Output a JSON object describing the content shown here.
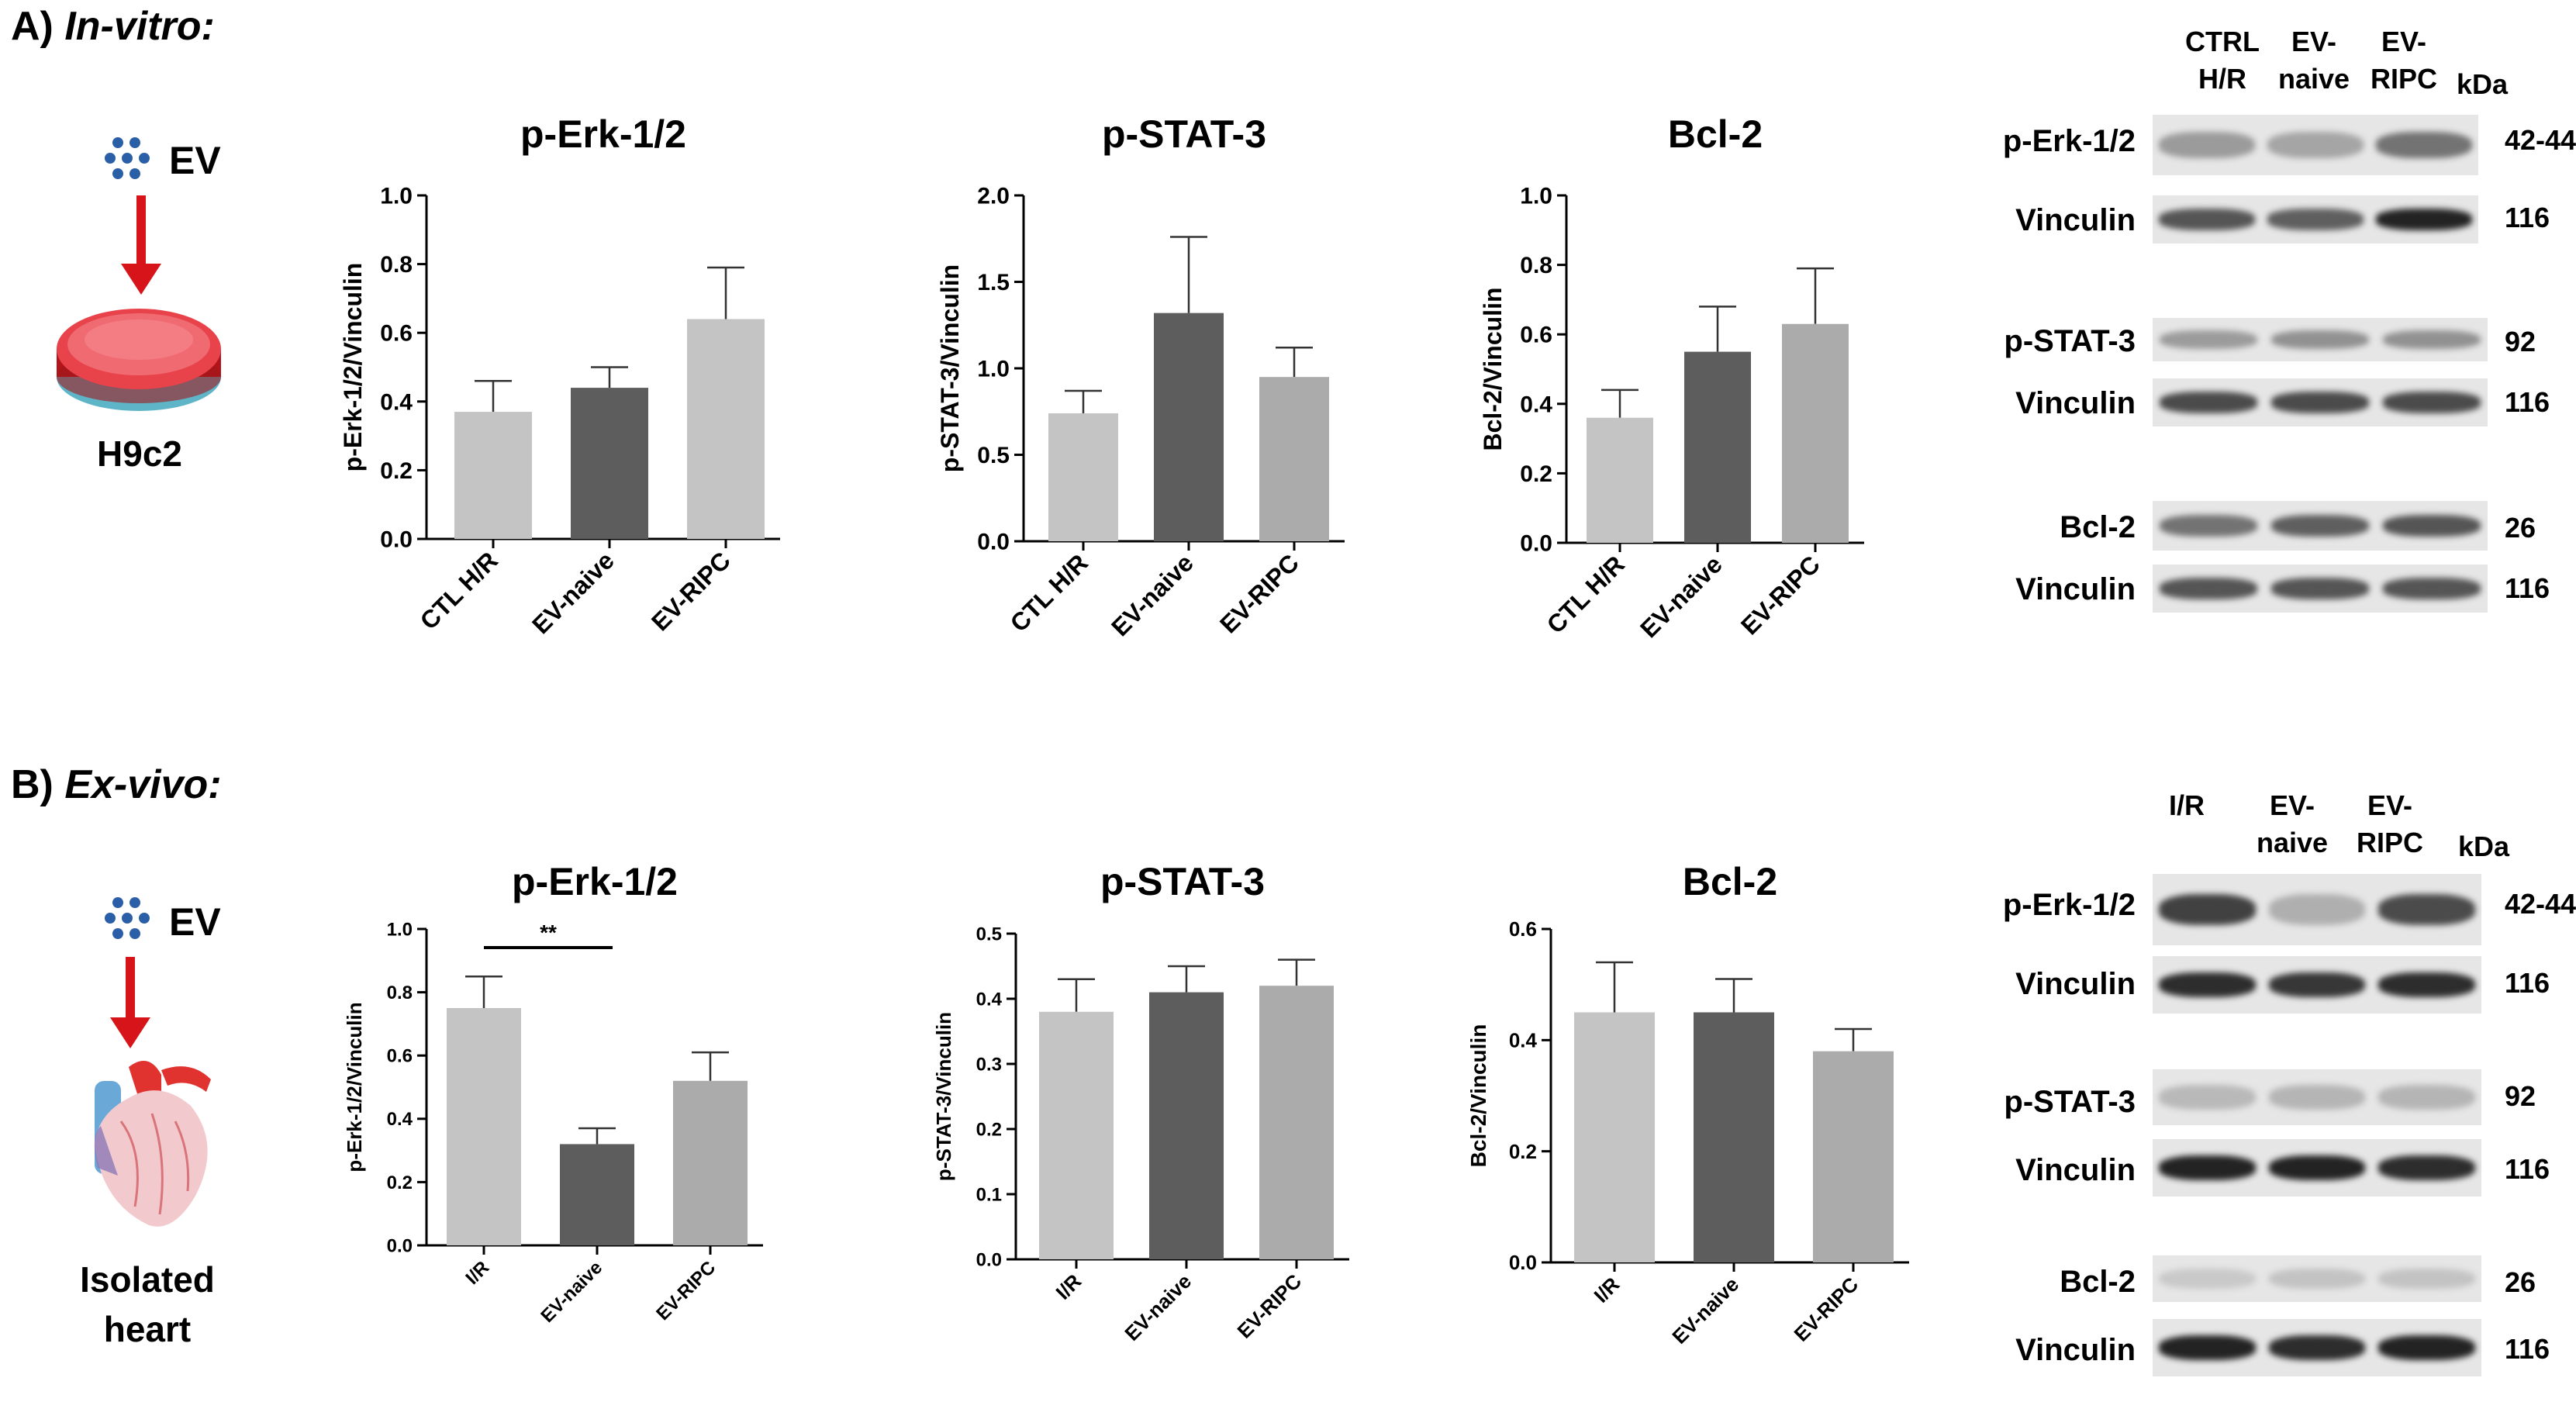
{
  "sections": {
    "a": {
      "prefix": "A)",
      "title": "In-vitro:",
      "treatment": "EV",
      "model": "H9c2"
    },
    "b": {
      "prefix": "B)",
      "title": "Ex-vivo:",
      "treatment": "EV",
      "model_line1": "Isolated",
      "model_line2": "heart"
    }
  },
  "chart_data": [
    {
      "id": "a1",
      "type": "bar",
      "title": "p-Erk-1/2",
      "ylabel": "p-Erk-1/2/Vinculin",
      "categories": [
        "CTL H/R",
        "EV-naive",
        "EV-RIPC"
      ],
      "values": [
        0.37,
        0.44,
        0.64
      ],
      "errors": [
        0.09,
        0.06,
        0.15
      ],
      "ylim": [
        0,
        1.0
      ],
      "ticks": [
        "0.0",
        "0.2",
        "0.4",
        "0.6",
        "0.8",
        "1.0"
      ],
      "colors": [
        "#c4c4c4",
        "#5d5d5d",
        "#c4c4c4"
      ],
      "significance": []
    },
    {
      "id": "a2",
      "type": "bar",
      "title": "p-STAT-3",
      "ylabel": "p-STAT-3/Vinculin",
      "categories": [
        "CTL H/R",
        "EV-naive",
        "EV-RIPC"
      ],
      "values": [
        0.74,
        1.32,
        0.95
      ],
      "errors": [
        0.13,
        0.44,
        0.17
      ],
      "ylim": [
        0,
        2.0
      ],
      "ticks": [
        "0.0",
        "0.5",
        "1.0",
        "1.5",
        "2.0"
      ],
      "colors": [
        "#c4c4c4",
        "#5d5d5d",
        "#ababab"
      ],
      "significance": []
    },
    {
      "id": "a3",
      "type": "bar",
      "title": "Bcl-2",
      "ylabel": "Bcl-2/Vinculin",
      "categories": [
        "CTL H/R",
        "EV-naive",
        "EV-RIPC"
      ],
      "values": [
        0.36,
        0.55,
        0.63
      ],
      "errors": [
        0.08,
        0.13,
        0.16
      ],
      "ylim": [
        0,
        1.0
      ],
      "ticks": [
        "0.0",
        "0.2",
        "0.4",
        "0.6",
        "0.8",
        "1.0"
      ],
      "colors": [
        "#c4c4c4",
        "#5d5d5d",
        "#ababab"
      ],
      "significance": []
    },
    {
      "id": "b1",
      "type": "bar",
      "title": "p-Erk-1/2",
      "ylabel": "p-Erk-1/2/Vinculin",
      "categories": [
        "I/R",
        "EV-naive",
        "EV-RIPC"
      ],
      "values": [
        0.75,
        0.32,
        0.52
      ],
      "errors": [
        0.1,
        0.05,
        0.09
      ],
      "ylim": [
        0,
        1.0
      ],
      "ticks": [
        "0.0",
        "0.2",
        "0.4",
        "0.6",
        "0.8",
        "1.0"
      ],
      "colors": [
        "#c4c4c4",
        "#5d5d5d",
        "#ababab"
      ],
      "significance": [
        {
          "from": 0,
          "to": 1,
          "label": "**"
        }
      ]
    },
    {
      "id": "b2",
      "type": "bar",
      "title": "p-STAT-3",
      "ylabel": "p-STAT-3/Vinculin",
      "categories": [
        "I/R",
        "EV-naive",
        "EV-RIPC"
      ],
      "values": [
        0.38,
        0.41,
        0.42
      ],
      "errors": [
        0.05,
        0.04,
        0.04
      ],
      "ylim": [
        0,
        0.5
      ],
      "ticks": [
        "0.0",
        "0.1",
        "0.2",
        "0.3",
        "0.4",
        "0.5"
      ],
      "colors": [
        "#c4c4c4",
        "#5d5d5d",
        "#ababab"
      ],
      "significance": []
    },
    {
      "id": "b3",
      "type": "bar",
      "title": "Bcl-2",
      "ylabel": "Bcl-2/Vinculin",
      "categories": [
        "I/R",
        "EV-naive",
        "EV-RIPC"
      ],
      "values": [
        0.45,
        0.45,
        0.38
      ],
      "errors": [
        0.09,
        0.06,
        0.04
      ],
      "ylim": [
        0,
        0.6
      ],
      "ticks": [
        "0.0",
        "0.2",
        "0.4",
        "0.6"
      ],
      "colors": [
        "#c4c4c4",
        "#5d5d5d",
        "#ababab"
      ],
      "significance": []
    }
  ],
  "blots": {
    "a": {
      "headers": [
        {
          "line1": "CTRL",
          "line2": "H/R"
        },
        {
          "line1": "EV-",
          "line2": "naive"
        },
        {
          "line1": "EV-",
          "line2": "RIPC"
        }
      ],
      "unit": "kDa",
      "rows": [
        {
          "label": "p-Erk-1/2",
          "kda": "42-44",
          "intensity": [
            0.35,
            0.3,
            0.55
          ]
        },
        {
          "label": "Vinculin",
          "kda": "116",
          "intensity": [
            0.7,
            0.65,
            0.95
          ]
        },
        {
          "label": "p-STAT-3",
          "kda": "92",
          "intensity": [
            0.35,
            0.4,
            0.4
          ]
        },
        {
          "label": "Vinculin",
          "kda": "116",
          "intensity": [
            0.75,
            0.75,
            0.75
          ]
        },
        {
          "label": "Bcl-2",
          "kda": "26",
          "intensity": [
            0.55,
            0.65,
            0.7
          ]
        },
        {
          "label": "Vinculin",
          "kda": "116",
          "intensity": [
            0.7,
            0.7,
            0.7
          ]
        }
      ]
    },
    "b": {
      "headers": [
        {
          "line1": "I/R",
          "line2": ""
        },
        {
          "line1": "EV-",
          "line2": "naive"
        },
        {
          "line1": "EV-",
          "line2": "RIPC"
        }
      ],
      "unit": "kDa",
      "rows": [
        {
          "label": "p-Erk-1/2",
          "kda": "42-44",
          "intensity": [
            0.8,
            0.25,
            0.75
          ]
        },
        {
          "label": "Vinculin",
          "kda": "116",
          "intensity": [
            0.9,
            0.85,
            0.9
          ]
        },
        {
          "label": "p-STAT-3",
          "kda": "92",
          "intensity": [
            0.2,
            0.22,
            0.22
          ]
        },
        {
          "label": "Vinculin",
          "kda": "116",
          "intensity": [
            0.95,
            0.95,
            0.9
          ]
        },
        {
          "label": "Bcl-2",
          "kda": "26",
          "intensity": [
            0.12,
            0.15,
            0.15
          ]
        },
        {
          "label": "Vinculin",
          "kda": "116",
          "intensity": [
            0.95,
            0.9,
            0.95
          ]
        }
      ]
    }
  }
}
